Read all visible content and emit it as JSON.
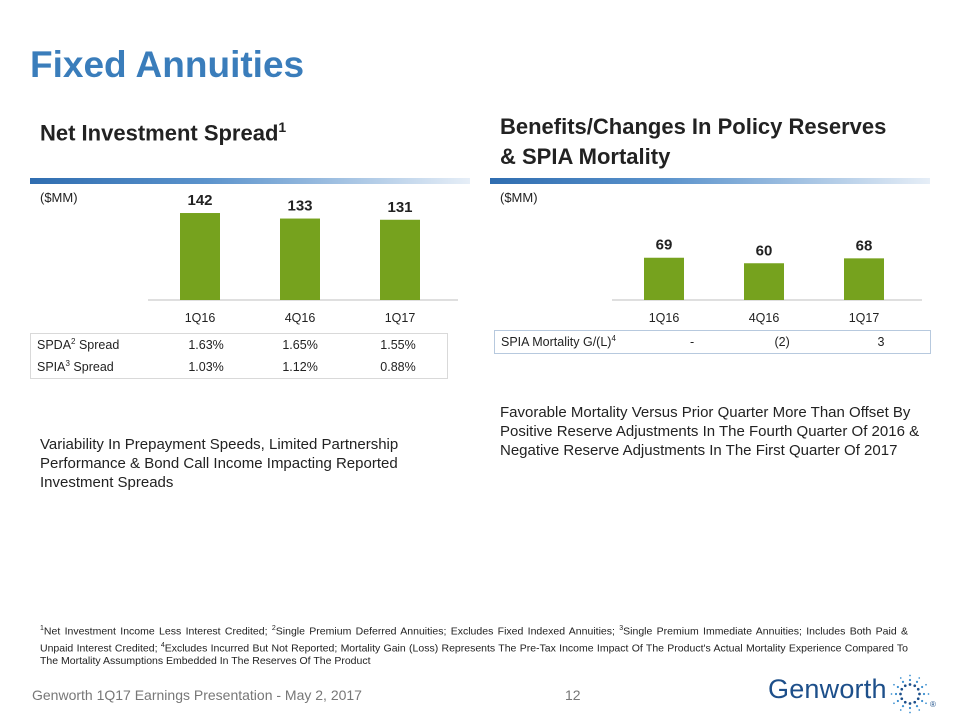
{
  "title": "Fixed Annuities",
  "left": {
    "heading": "Net Investment Spread",
    "heading_sup": "1",
    "unit": "($MM)",
    "table": {
      "rows": [
        {
          "label": "SPDA",
          "sup": "2",
          "suffix": " Spread",
          "values": [
            "1.63%",
            "1.65%",
            "1.55%"
          ]
        },
        {
          "label": "SPIA",
          "sup": "3",
          "suffix": " Spread",
          "values": [
            "1.03%",
            "1.12%",
            "0.88%"
          ]
        }
      ]
    },
    "note": "Variability In Prepayment Speeds, Limited Partnership Performance & Bond Call Income Impacting Reported Investment Spreads"
  },
  "right": {
    "heading_line1": "Benefits/Changes In Policy Reserves",
    "heading_line2": "& SPIA Mortality",
    "unit": "($MM)",
    "table": {
      "rows": [
        {
          "label": "SPIA Mortality G/(L)",
          "sup": "4",
          "suffix": "",
          "values": [
            "-",
            "(2)",
            "3"
          ]
        }
      ]
    },
    "note": "Favorable Mortality Versus Prior Quarter More Than Offset By Positive Reserve Adjustments In The Fourth Quarter Of 2016 & Negative Reserve Adjustments In The First Quarter Of 2017"
  },
  "chart_data": [
    {
      "type": "bar",
      "title": "Net Investment Spread",
      "ylabel": "($MM)",
      "categories": [
        "1Q16",
        "4Q16",
        "1Q17"
      ],
      "values": [
        142,
        133,
        131
      ],
      "ylim": [
        0,
        160
      ]
    },
    {
      "type": "bar",
      "title": "Benefits/Changes In Policy Reserves & SPIA Mortality",
      "ylabel": "($MM)",
      "categories": [
        "1Q16",
        "4Q16",
        "1Q17"
      ],
      "values": [
        69,
        60,
        68
      ],
      "ylim": [
        0,
        160
      ]
    }
  ],
  "footnote": {
    "segments": [
      {
        "sup": "1",
        "text": "Net Investment Income Less Interest Credited; "
      },
      {
        "sup": "2",
        "text": "Single Premium Deferred Annuities; Excludes Fixed Indexed Annuities; "
      },
      {
        "sup": "3",
        "text": "Single Premium Immediate Annuities; Includes Both Paid & Unpaid Interest Credited; "
      },
      {
        "sup": "4",
        "text": "Excludes Incurred But Not Reported; Mortality Gain (Loss) Represents The Pre-Tax Income Impact Of The Product's Actual Mortality Experience Compared To The Mortality Assumptions Embedded In The Reserves Of The Product"
      }
    ]
  },
  "footer": {
    "text": "Genworth 1Q17 Earnings Presentation - May 2, 2017",
    "page_number": "12",
    "logo_text": "Genworth",
    "logo_reg": "®"
  },
  "colors": {
    "title": "#3a7dbb",
    "bar": "#76a21e",
    "rule_dark": "#2f6db0",
    "rule_light": "#e6eef7",
    "logo": "#1d4f8a"
  }
}
